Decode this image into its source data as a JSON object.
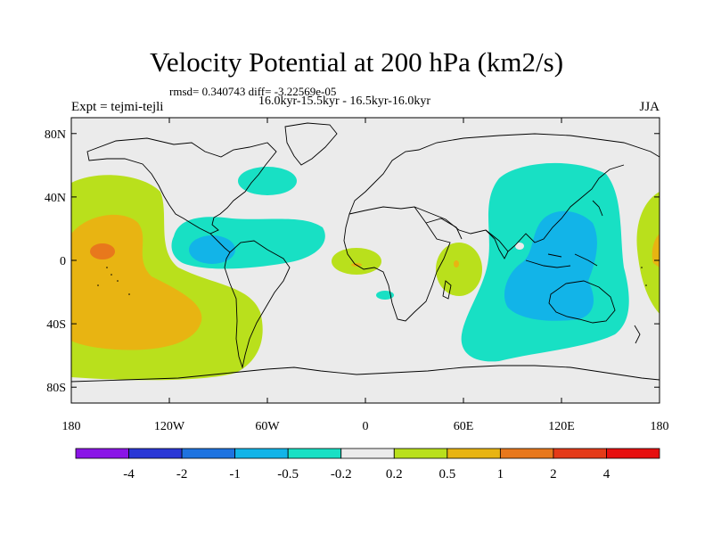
{
  "title": "Velocity Potential at 200 hPa (km2/s)",
  "rmsd_line": "rmsd= 0.340743 diff= -3.22569e-05",
  "period_line": "16.0kyr-15.5kyr - 16.5kyr-16.0kyr",
  "experiment": "Expt = tejmi-tejli",
  "season": "JJA",
  "map_data": {
    "type": "contour-fill map",
    "projection": "cylindrical equidistant",
    "lon_range": [
      -180,
      180
    ],
    "lat_range": [
      -90,
      90
    ],
    "lon_ticks": [
      -180,
      -120,
      -60,
      0,
      60,
      120,
      180
    ],
    "lon_tick_labels": [
      "180",
      "120W",
      "60W",
      "0",
      "60E",
      "120E",
      "180"
    ],
    "lat_ticks": [
      80,
      40,
      0,
      -40,
      -80
    ],
    "lat_tick_labels": [
      "80N",
      "40N",
      "0",
      "40S",
      "80S"
    ]
  },
  "colorbar": {
    "levels": [
      "-4",
      "-2",
      "-1",
      "-0.5",
      "-0.2",
      "0.2",
      "0.5",
      "1",
      "2",
      "4"
    ],
    "colors": [
      "#8a14e6",
      "#2a37d6",
      "#1e73e0",
      "#12b4e8",
      "#18e0c4",
      "#ebebeb",
      "#b9e01c",
      "#e8b412",
      "#e8781c",
      "#e43a18",
      "#e60f0f"
    ]
  },
  "colors": {
    "background": "#ebebeb",
    "neg_weak": "#18e0c4",
    "neg_mid": "#12b4e8",
    "pos_weak": "#b9e01c",
    "pos_mid": "#e8b412",
    "pos_strong": "#e8781c"
  }
}
